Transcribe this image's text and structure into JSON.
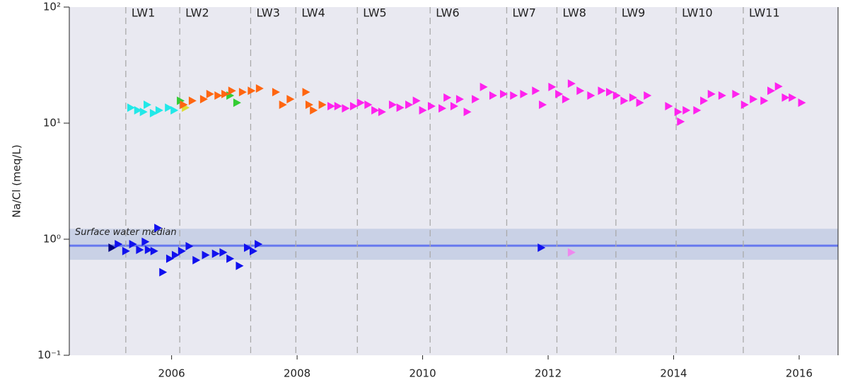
{
  "chart_data": {
    "type": "scatter",
    "ylabel": "Na/Cl (meq/L)",
    "log_y": true,
    "xlim": [
      2004.37,
      2016.62
    ],
    "ylim": [
      0.1,
      100
    ],
    "xticks": [
      2006,
      2008,
      2010,
      2012,
      2014,
      2016
    ],
    "yticks": [
      {
        "value": 0.1,
        "label": "10⁻¹"
      },
      {
        "value": 1,
        "label": "10⁰"
      },
      {
        "value": 10,
        "label": "10¹"
      },
      {
        "value": 100,
        "label": "10²"
      }
    ],
    "events": [
      {
        "label": "LW1",
        "x": 2005.27
      },
      {
        "label": "LW2",
        "x": 2006.13
      },
      {
        "label": "LW3",
        "x": 2007.26
      },
      {
        "label": "LW4",
        "x": 2007.98
      },
      {
        "label": "LW5",
        "x": 2008.96
      },
      {
        "label": "LW6",
        "x": 2010.12
      },
      {
        "label": "LW7",
        "x": 2011.34
      },
      {
        "label": "LW8",
        "x": 2012.14
      },
      {
        "label": "LW9",
        "x": 2013.08
      },
      {
        "label": "LW10",
        "x": 2014.04
      },
      {
        "label": "LW11",
        "x": 2015.11
      }
    ],
    "median": {
      "label": "Surface water median",
      "value": 0.88,
      "band": [
        0.665,
        1.23
      ],
      "color": "#6677ee",
      "band_color": "#c9d1e6"
    },
    "series": [
      {
        "color": "#22e8e8",
        "x": [
          2005.35,
          2005.46,
          2005.55,
          2005.61,
          2005.71,
          2005.8,
          2005.95,
          2006.04
        ],
        "values": [
          13.6,
          12.9,
          12.5,
          14.4,
          12.2,
          12.9,
          13.6,
          12.9
        ]
      },
      {
        "color": "#33cc33",
        "x": [
          2006.14,
          2006.93,
          2007.04
        ],
        "values": [
          15.6,
          17.3,
          15.0
        ]
      },
      {
        "color": "#dddd33",
        "x": [
          2006.22
        ],
        "values": [
          13.6
        ]
      },
      {
        "color": "#ff6611",
        "x": [
          2006.19,
          2006.33,
          2006.51,
          2006.61,
          2006.74,
          2006.85,
          2006.96,
          2007.13,
          2007.27,
          2007.4,
          2007.66,
          2007.77,
          2007.89,
          2008.14,
          2008.19,
          2008.26,
          2008.4
        ],
        "values": [
          14.4,
          15.6,
          16.1,
          17.8,
          17.3,
          17.8,
          19.0,
          18.5,
          19.0,
          19.9,
          18.5,
          14.4,
          16.1,
          18.5,
          14.4,
          12.9,
          14.4
        ]
      },
      {
        "color": "#ff22ee",
        "x": [
          2008.54,
          2008.65,
          2008.77,
          2008.9,
          2009.01,
          2009.13,
          2009.24,
          2009.35,
          2009.52,
          2009.64,
          2009.78,
          2009.9,
          2010.0,
          2010.14,
          2010.31,
          2010.39,
          2010.5,
          2010.59,
          2010.71,
          2010.84,
          2010.97,
          2011.12,
          2011.29,
          2011.45,
          2011.61,
          2011.8,
          2011.91,
          2012.06,
          2012.17,
          2012.28,
          2012.37,
          2012.51,
          2012.68,
          2012.85,
          2012.98,
          2013.09,
          2013.21,
          2013.35,
          2013.46,
          2013.58,
          2013.92,
          2014.07,
          2014.11,
          2014.2,
          2014.37,
          2014.48,
          2014.6,
          2014.77,
          2014.99,
          2015.13,
          2015.27,
          2015.44,
          2015.55,
          2015.67,
          2015.78,
          2015.89,
          2016.04
        ],
        "values": [
          14.0,
          14.0,
          13.4,
          14.0,
          15.0,
          14.4,
          12.9,
          12.5,
          14.4,
          13.6,
          14.4,
          15.6,
          12.9,
          14.0,
          13.4,
          16.6,
          14.0,
          16.1,
          12.5,
          16.1,
          20.5,
          17.3,
          17.8,
          17.3,
          17.8,
          19.0,
          14.4,
          20.5,
          17.8,
          16.1,
          21.9,
          19.0,
          17.3,
          19.0,
          18.5,
          17.3,
          15.6,
          16.6,
          15.0,
          17.3,
          14.0,
          12.5,
          10.3,
          12.9,
          12.9,
          15.6,
          17.8,
          17.3,
          17.8,
          14.4,
          16.1,
          15.6,
          19.0,
          20.7,
          16.6,
          16.6,
          15.0
        ]
      },
      {
        "color": "#000080",
        "x": [
          2005.05
        ],
        "values": [
          0.845
        ]
      },
      {
        "color": "#1111ee",
        "x": [
          2005.15,
          2005.27,
          2005.38,
          2005.49,
          2005.58,
          2005.63,
          2005.72,
          2005.78,
          2005.86,
          2005.97,
          2006.06,
          2006.16,
          2006.28,
          2006.39,
          2006.54,
          2006.7,
          2006.82,
          2006.93,
          2007.08,
          2007.21,
          2007.3,
          2007.38,
          2011.89
        ],
        "values": [
          0.906,
          0.79,
          0.906,
          0.81,
          0.95,
          0.81,
          0.79,
          1.25,
          0.52,
          0.68,
          0.73,
          0.79,
          0.87,
          0.66,
          0.73,
          0.75,
          0.77,
          0.68,
          0.59,
          0.845,
          0.79,
          0.906,
          0.845
        ]
      },
      {
        "color": "#ee88ee",
        "x": [
          2012.37
        ],
        "values": [
          0.77
        ]
      }
    ]
  }
}
